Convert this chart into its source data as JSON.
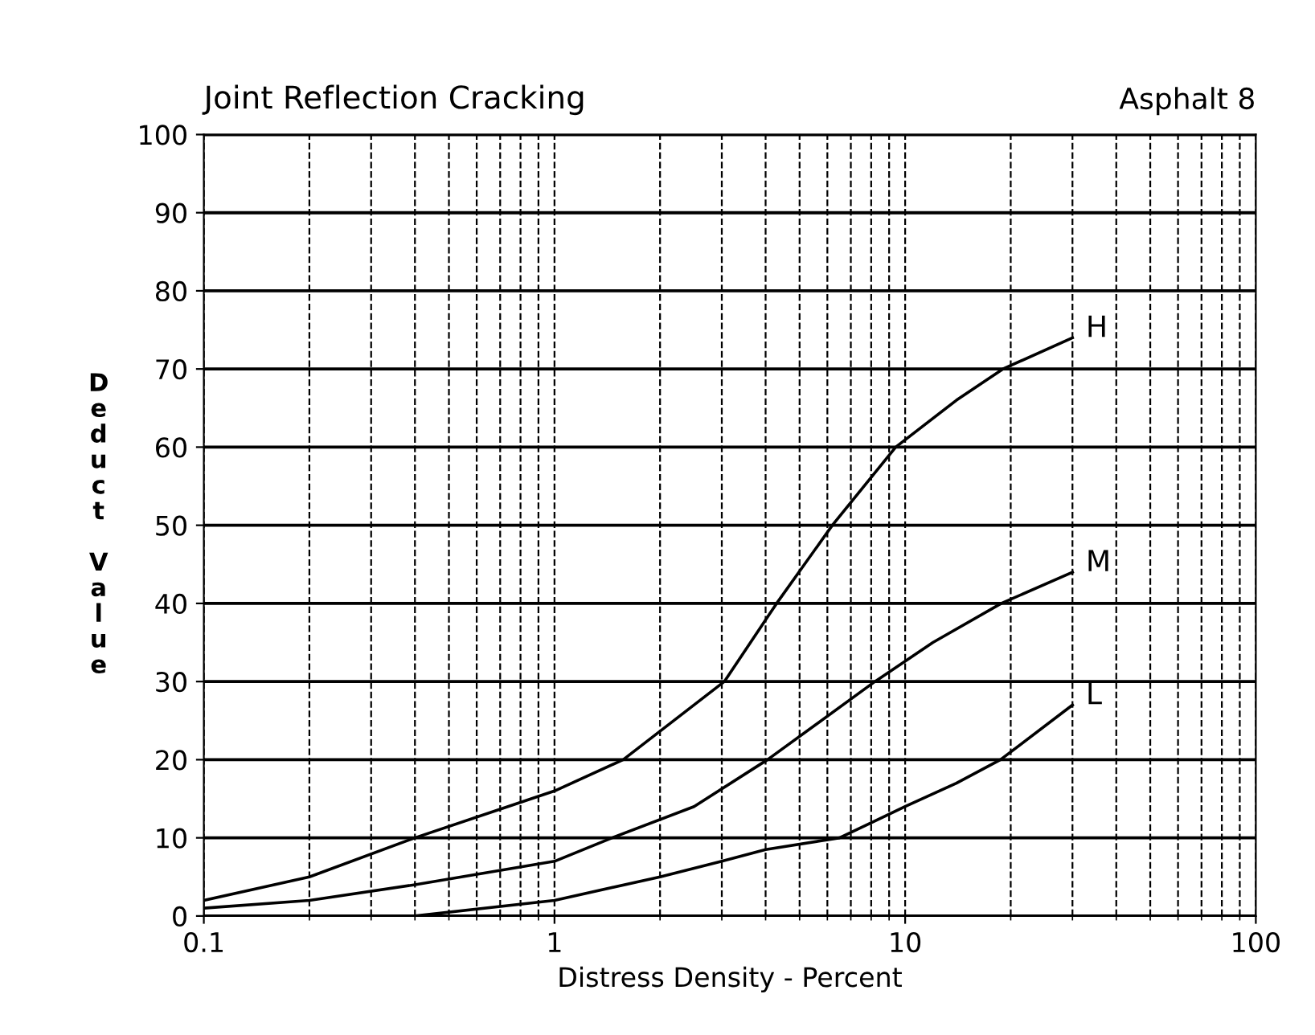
{
  "chart_data": {
    "type": "line",
    "title": "Joint Reflection Cracking",
    "subtitle": "Asphalt 8",
    "xlabel": "Distress Density - Percent",
    "ylabel": "Deduct Value",
    "log": "x",
    "xlim": [
      0.1,
      100
    ],
    "xticks": [
      0.1,
      1,
      10,
      100
    ],
    "ylim": [
      0,
      100
    ],
    "yticks": [
      0,
      10,
      20,
      30,
      40,
      50,
      60,
      70,
      80,
      90,
      100
    ],
    "grid": true,
    "marker": "none",
    "line_style": "solid",
    "legend": false,
    "series": [
      {
        "name": "H",
        "color": "#000000",
        "x": [
          0.1,
          0.2,
          0.4,
          1,
          1.57,
          3.05,
          4.3,
          6.2,
          9.4,
          14,
          19,
          30
        ],
        "values": [
          2,
          5,
          10,
          16,
          20,
          30,
          40,
          50,
          60,
          66,
          70,
          74
        ]
      },
      {
        "name": "M",
        "color": "#000000",
        "x": [
          0.1,
          0.2,
          0.4,
          1,
          1.46,
          2.5,
          4.05,
          8.2,
          12,
          18.8,
          30
        ],
        "values": [
          1,
          2,
          4,
          7,
          10,
          14,
          20,
          30,
          35,
          40,
          44
        ]
      },
      {
        "name": "L",
        "color": "#000000",
        "x": [
          0.4,
          1,
          2,
          3,
          4,
          6.5,
          10,
          14,
          18.7,
          30
        ],
        "values": [
          0,
          2,
          5,
          7,
          8.5,
          10,
          14,
          17,
          20,
          27
        ]
      }
    ]
  }
}
